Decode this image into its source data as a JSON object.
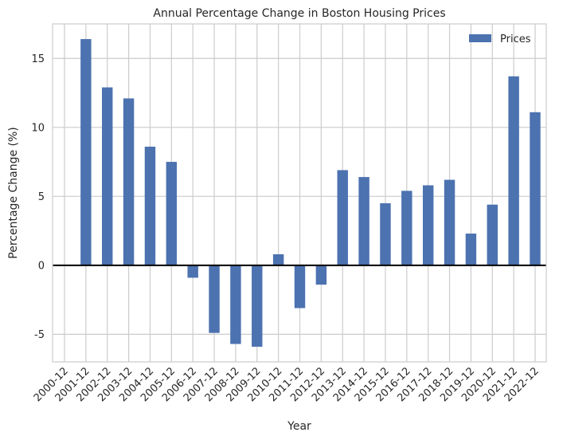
{
  "chart_data": {
    "type": "bar",
    "title": "Annual Percentage Change in Boston Housing Prices",
    "xlabel": "Year",
    "ylabel": "Percentage Change (%)",
    "categories": [
      "2000-12",
      "2001-12",
      "2002-12",
      "2003-12",
      "2004-12",
      "2005-12",
      "2006-12",
      "2007-12",
      "2008-12",
      "2009-12",
      "2010-12",
      "2011-12",
      "2012-12",
      "2013-12",
      "2014-12",
      "2015-12",
      "2016-12",
      "2017-12",
      "2018-12",
      "2019-12",
      "2020-12",
      "2021-12",
      "2022-12"
    ],
    "series": [
      {
        "name": "Prices",
        "color": "#4c72b0",
        "values": [
          null,
          16.4,
          12.9,
          12.1,
          8.6,
          7.5,
          -0.9,
          -4.9,
          -5.7,
          -5.9,
          0.8,
          -3.1,
          -1.4,
          6.9,
          6.4,
          4.5,
          5.4,
          5.8,
          6.2,
          2.3,
          4.4,
          13.7,
          11.1
        ]
      }
    ],
    "yticks": [
      -5,
      0,
      5,
      10,
      15
    ],
    "ylim": [
      -7.0,
      17.5
    ],
    "grid": true,
    "legend_position": "top-right",
    "zero_line": true
  }
}
